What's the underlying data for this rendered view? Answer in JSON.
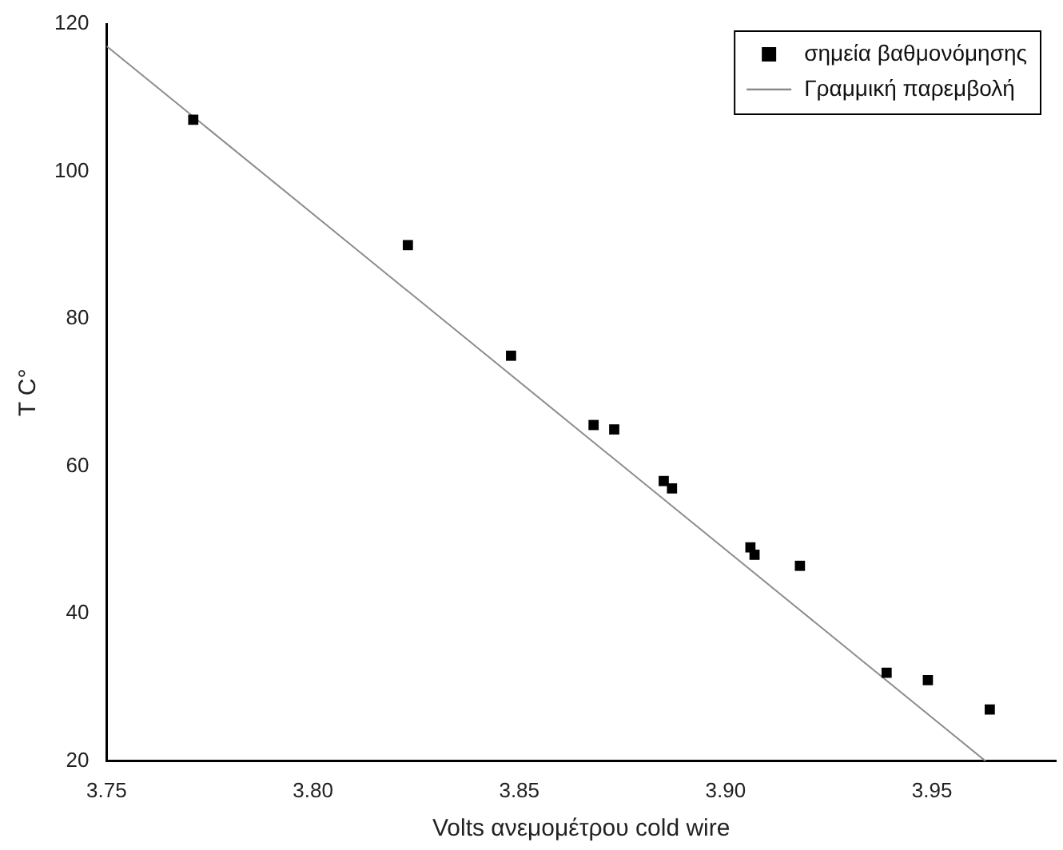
{
  "chart_data": {
    "type": "scatter",
    "xlabel": "Volts ανεμομέτρου cold wire",
    "ylabel": "T C°",
    "xlim": [
      3.75,
      3.98
    ],
    "xticks": [
      3.75,
      {
        "value": 3.8,
        "label": "3.80"
      },
      3.85,
      {
        "value": 3.9,
        "label": "3.90"
      },
      3.95
    ],
    "ylim": [
      20,
      120
    ],
    "yticks": [
      20,
      40,
      60,
      80,
      100,
      120
    ],
    "legend": "top right",
    "grid": false,
    "series": [
      {
        "name": "σημεία βαθμονόμησης",
        "type": "scatter",
        "marker": "square",
        "color": "#000000",
        "x": [
          3.771,
          3.823,
          3.848,
          3.868,
          3.873,
          3.885,
          3.887,
          3.906,
          3.907,
          3.918,
          3.939,
          3.949,
          3.964
        ],
        "values": [
          107,
          90,
          75,
          65.6,
          65,
          58,
          57,
          49,
          48,
          46.5,
          32,
          31,
          27
        ]
      },
      {
        "name": "Γραμμική παρεμβολή",
        "type": "line",
        "marker": "none",
        "color": "#8c8c8c",
        "x": [
          3.75,
          3.963
        ],
        "values": [
          117,
          20
        ]
      }
    ]
  }
}
